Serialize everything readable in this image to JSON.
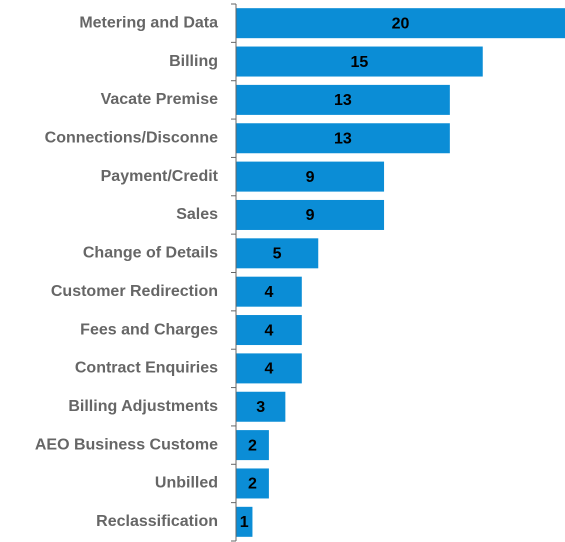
{
  "chart_data": {
    "type": "bar",
    "orientation": "horizontal",
    "categories": [
      "Metering and Data",
      "Billing",
      "Vacate Premise",
      "Connections/Disconne",
      "Payment/Credit",
      "Sales",
      "Change of Details",
      "Customer Redirection",
      "Fees and Charges",
      "Contract Enquiries",
      "Billing Adjustments",
      "AEO Business Custome",
      "Unbilled",
      "Reclassification"
    ],
    "values": [
      20,
      15,
      13,
      13,
      9,
      9,
      5,
      4,
      4,
      4,
      3,
      2,
      2,
      1
    ],
    "color": "#0b8dd6",
    "xlim": [
      0,
      20
    ]
  }
}
